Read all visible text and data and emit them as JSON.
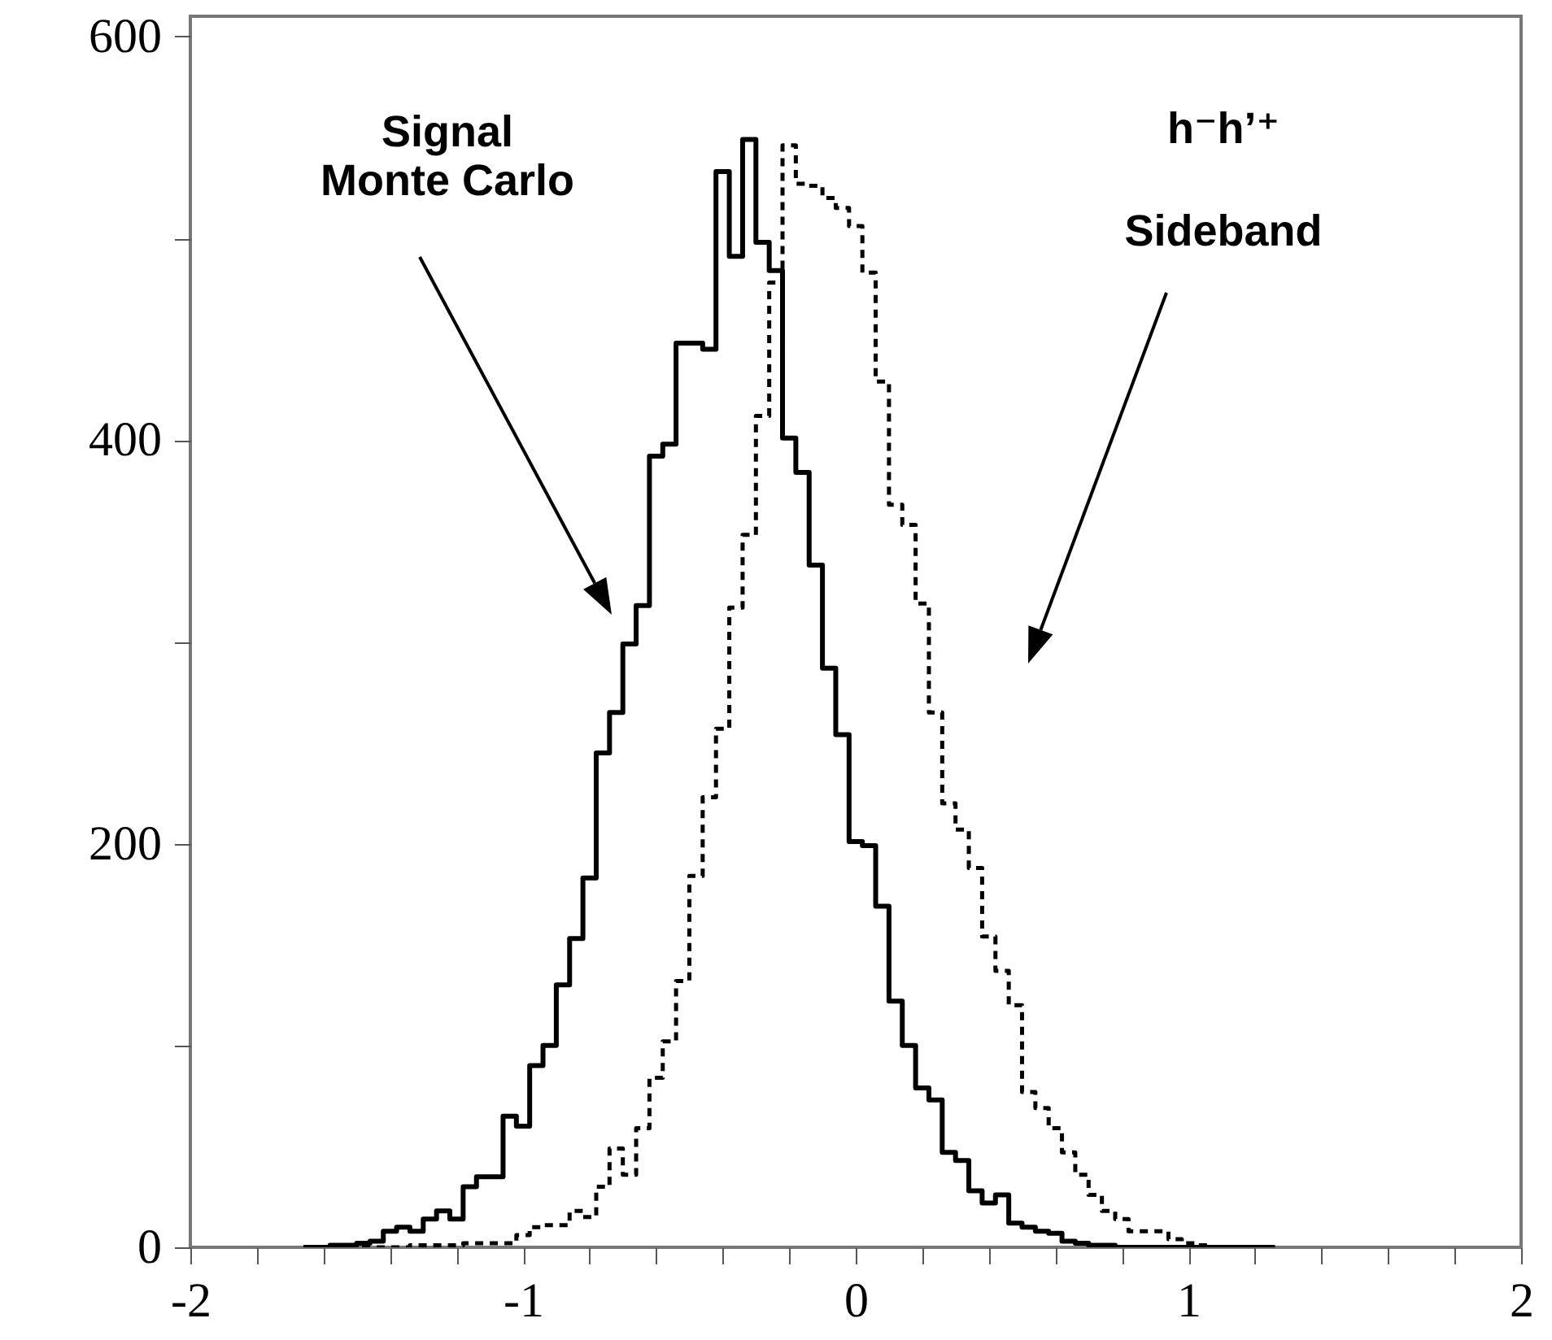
{
  "chart_data": {
    "type": "histogram",
    "bins": [
      -1.66,
      -1.62,
      -1.58,
      -1.54,
      -1.5,
      -1.46,
      -1.42,
      -1.38,
      -1.34,
      -1.3,
      -1.26,
      -1.22,
      -1.18,
      -1.14,
      -1.1,
      -1.06,
      -1.02,
      -0.98,
      -0.94,
      -0.9,
      -0.86,
      -0.82,
      -0.78,
      -0.74,
      -0.7,
      -0.66,
      -0.62,
      -0.58,
      -0.54,
      -0.5,
      -0.46,
      -0.42,
      -0.38,
      -0.34,
      -0.3,
      -0.26,
      -0.22,
      -0.18,
      -0.14,
      -0.1,
      -0.06,
      -0.02,
      0.02,
      0.06,
      0.1,
      0.14,
      0.18,
      0.22,
      0.26,
      0.3,
      0.34,
      0.38,
      0.42,
      0.46,
      0.5,
      0.54,
      0.58,
      0.62,
      0.66,
      0.7,
      0.74,
      0.78,
      0.82,
      0.86,
      0.9,
      0.94,
      0.98,
      1.02,
      1.06,
      1.1,
      1.14,
      1.18,
      1.22,
      1.26
    ],
    "series": [
      {
        "color": "#000000",
        "line_style": "solid",
        "values": [
          0,
          0,
          1,
          1,
          2,
          3,
          8,
          10,
          8,
          14,
          18,
          14,
          30,
          35,
          35,
          65,
          60,
          90,
          100,
          130,
          153,
          183,
          245,
          265,
          299,
          318,
          392,
          398,
          448,
          448,
          445,
          533,
          491,
          549,
          498,
          484,
          401,
          384,
          338,
          287,
          254,
          201,
          199,
          169,
          122,
          100,
          79,
          73,
          47,
          43,
          28,
          22,
          26,
          12,
          10,
          8,
          7,
          3,
          2,
          1,
          1,
          0,
          0,
          0,
          0,
          0,
          0,
          0,
          0,
          0,
          0,
          0,
          0
        ]
      },
      {
        "color": "#000000",
        "line_style": "dashed",
        "values": [
          0,
          0,
          0,
          0,
          0,
          0,
          0,
          0,
          1,
          1,
          1,
          1,
          2,
          2,
          2,
          2,
          6,
          10,
          11,
          11,
          18,
          15,
          30,
          49,
          36,
          59,
          84,
          102,
          132,
          184,
          223,
          257,
          317,
          353,
          412,
          478,
          546,
          527,
          526,
          520,
          515,
          506,
          483,
          429,
          368,
          358,
          319,
          265,
          220,
          207,
          188,
          154,
          137,
          120,
          77,
          69,
          59,
          47,
          36,
          26,
          18,
          14,
          8,
          8,
          8,
          4,
          2,
          1,
          0,
          0,
          0,
          0,
          0
        ]
      }
    ],
    "xlim": [
      -2,
      2
    ],
    "xticks": [
      -2,
      {
        "value": -1.8,
        "label": null
      },
      {
        "value": -1.6,
        "label": null
      },
      {
        "value": -1.4,
        "label": null
      },
      {
        "value": -1.2,
        "label": null
      },
      -1,
      {
        "value": -0.8,
        "label": null
      },
      {
        "value": -0.6,
        "label": null
      },
      {
        "value": -0.4,
        "label": null
      },
      {
        "value": -0.2,
        "label": null
      },
      0,
      {
        "value": 0.2,
        "label": null
      },
      {
        "value": 0.4,
        "label": null
      },
      {
        "value": 0.6,
        "label": null
      },
      {
        "value": 0.8,
        "label": null
      },
      1,
      {
        "value": 1.2,
        "label": null
      },
      {
        "value": 1.4,
        "label": null
      },
      {
        "value": 1.6,
        "label": null
      },
      {
        "value": 1.8,
        "label": null
      },
      2
    ],
    "ylim": [
      0,
      610
    ],
    "yticks": [
      0,
      {
        "value": 100,
        "label": null
      },
      200,
      {
        "value": 300,
        "label": null
      },
      400,
      {
        "value": 500,
        "label": null
      },
      600
    ],
    "annotations": [
      "Signal\nMonte Carlo",
      "h⁻h’⁺\nSideband"
    ]
  }
}
